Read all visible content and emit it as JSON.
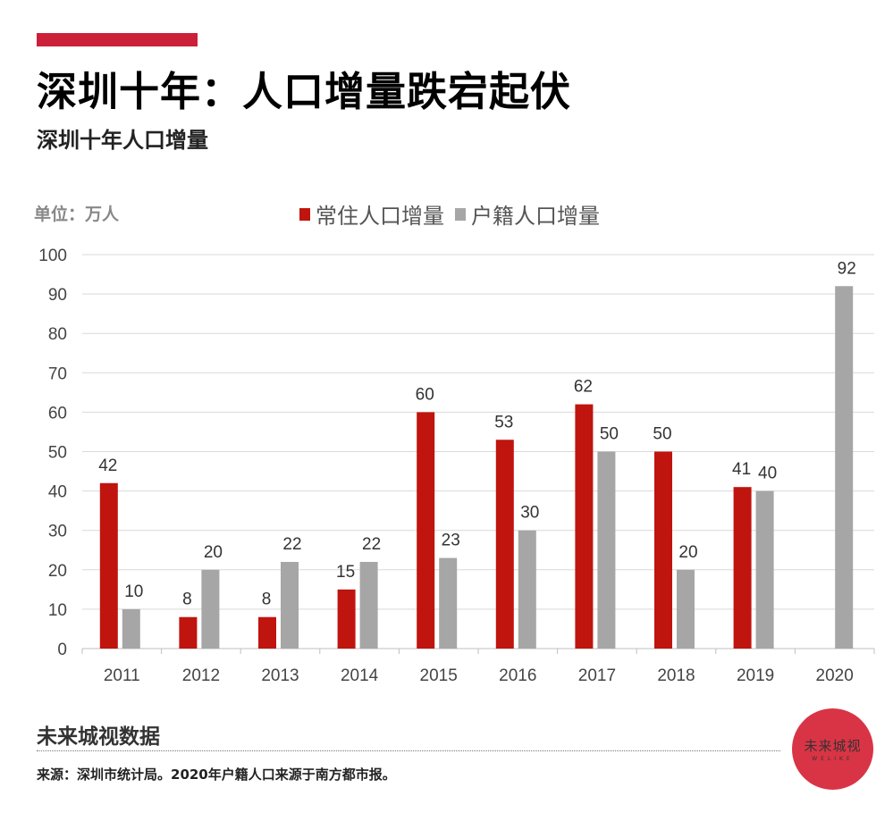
{
  "header": {
    "title": "深圳十年：人口增量跌宕起伏",
    "subtitle": "深圳十年人口增量",
    "unit": "单位：万人"
  },
  "footer": {
    "brand": "未来城视数据",
    "source": "来源：深圳市统计局。2020年户籍人口来源于南方都市报。",
    "logo_cn": "未来城视",
    "logo_en": "WELIKE"
  },
  "chart_data": {
    "type": "bar",
    "title": "深圳十年人口增量",
    "xlabel": "",
    "ylabel": "单位：万人",
    "ylim": [
      0,
      100
    ],
    "yticks": [
      0,
      10,
      20,
      30,
      40,
      50,
      60,
      70,
      80,
      90,
      100
    ],
    "grid": true,
    "legend_position": "top",
    "categories": [
      "2011",
      "2012",
      "2013",
      "2014",
      "2015",
      "2016",
      "2017",
      "2018",
      "2019",
      "2020"
    ],
    "series": [
      {
        "name": "常住人口增量",
        "color": "#c0140e",
        "values": [
          42,
          8,
          8,
          15,
          60,
          53,
          62,
          50,
          41,
          null
        ]
      },
      {
        "name": "户籍人口增量",
        "color": "#a6a6a6",
        "values": [
          10,
          20,
          22,
          22,
          23,
          30,
          50,
          20,
          40,
          92
        ]
      }
    ]
  }
}
